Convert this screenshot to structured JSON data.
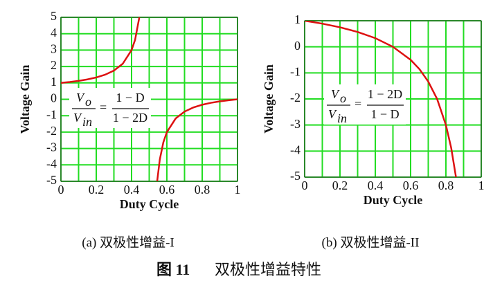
{
  "chart_data": [
    {
      "type": "line",
      "caption": "(a)  双极性增益-I",
      "ylabel": "Voltage Gain",
      "xlabel": "Duty Cycle",
      "x": [
        0,
        0.05,
        0.1,
        0.15,
        0.2,
        0.25,
        0.3,
        0.35,
        0.4,
        0.42,
        0.444,
        0.5,
        0.545,
        0.56,
        0.58,
        0.6,
        0.65,
        0.7,
        0.75,
        0.8,
        0.85,
        0.9,
        0.95,
        1
      ],
      "series": [
        {
          "color": "#dd1111",
          "values": [
            1,
            1.056,
            1.125,
            1.214,
            1.333,
            1.5,
            1.75,
            2.167,
            3,
            3.625,
            5,
            null,
            -5,
            -3.667,
            -2.625,
            -2,
            -1.167,
            -0.75,
            -0.5,
            -0.333,
            -0.214,
            -0.125,
            -0.056,
            0
          ]
        }
      ],
      "xlim": [
        0,
        1
      ],
      "ylim": [
        -5,
        5
      ],
      "xticks": [
        0,
        0.2,
        0.4,
        0.6,
        0.8,
        1
      ],
      "xminorticks": [
        0.1,
        0.3,
        0.5,
        0.7,
        0.9
      ],
      "yticks": [
        -5,
        -4,
        -3,
        -2,
        -1,
        0,
        1,
        2,
        3,
        4,
        5
      ],
      "grid": true,
      "grid_color": "#22dd22",
      "formula": {
        "lhs_num": "V",
        "lhs_num_sub": "o",
        "lhs_den": "V",
        "lhs_den_sub": "in",
        "eq": "=",
        "rhs_num": "1 − D",
        "rhs_den": "1 − 2D"
      }
    },
    {
      "type": "line",
      "caption": "(b)  双极性增益-II",
      "ylabel": "Voltage Gain",
      "xlabel": "Duty Cycle",
      "x": [
        0,
        0.1,
        0.2,
        0.3,
        0.4,
        0.5,
        0.6,
        0.65,
        0.7,
        0.75,
        0.8,
        0.83,
        0.857
      ],
      "series": [
        {
          "color": "#dd1111",
          "values": [
            1,
            0.889,
            0.75,
            0.571,
            0.333,
            0,
            -0.5,
            -0.857,
            -1.333,
            -2,
            -3,
            -3.882,
            -5
          ]
        }
      ],
      "xlim": [
        0,
        1
      ],
      "ylim": [
        -5,
        1
      ],
      "xticks": [
        0,
        0.2,
        0.4,
        0.6,
        0.8,
        1
      ],
      "xminorticks": [
        0.1,
        0.3,
        0.5,
        0.7,
        0.9
      ],
      "yticks": [
        -5,
        -4,
        -3,
        -2,
        -1,
        0,
        1
      ],
      "grid": true,
      "grid_color": "#22dd22",
      "formula": {
        "lhs_num": "V",
        "lhs_num_sub": "o",
        "lhs_den": "V",
        "lhs_den_sub": "in",
        "eq": "=",
        "rhs_num": "1 − 2D",
        "rhs_den": "1 − D"
      }
    }
  ],
  "figure_caption": {
    "label": "图 11",
    "text": "双极性增益特性"
  }
}
